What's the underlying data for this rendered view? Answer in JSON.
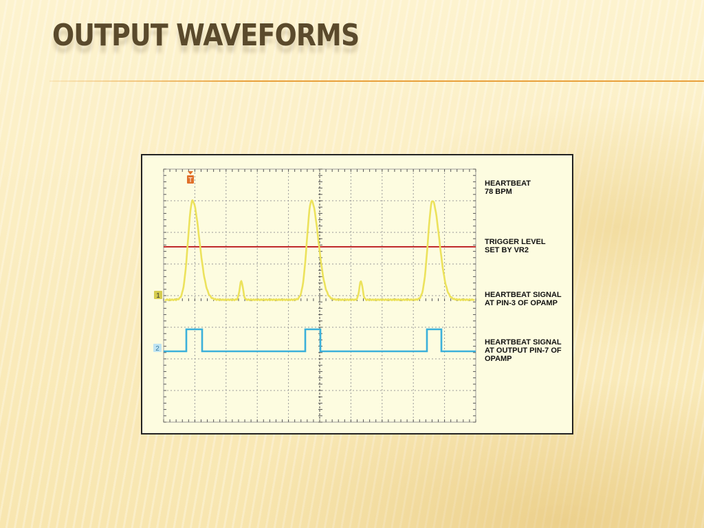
{
  "slide": {
    "title": "OUTPUT WAVEFORMS"
  },
  "scope": {
    "trigger_marker": "T",
    "channel_1_marker": "1",
    "channel_2_marker": "2",
    "colors": {
      "heartbeat_trace": "#ece25c",
      "trigger_line": "#c0282a",
      "output_trace": "#3bb0da",
      "grid": "#9a9a9a",
      "trigger_marker": "#e0702a",
      "channel_1_marker": "#d6cc4e",
      "channel_2_marker": "#bfe4f2"
    }
  },
  "labels": {
    "heartbeat": {
      "line1": "HEARTBEAT",
      "line2": "78 BPM"
    },
    "trigger": {
      "line1": "TRIGGER LEVEL",
      "line2": "SET BY VR2"
    },
    "signal_in": {
      "line1": "HEARTBEAT SIGNAL",
      "line2": "AT PIN-3 OF OPAMP"
    },
    "signal_out": {
      "line1": "HEARTBEAT SIGNAL",
      "line2": "AT OUTPUT PIN-7 OF",
      "line3": "OPAMP"
    }
  }
}
